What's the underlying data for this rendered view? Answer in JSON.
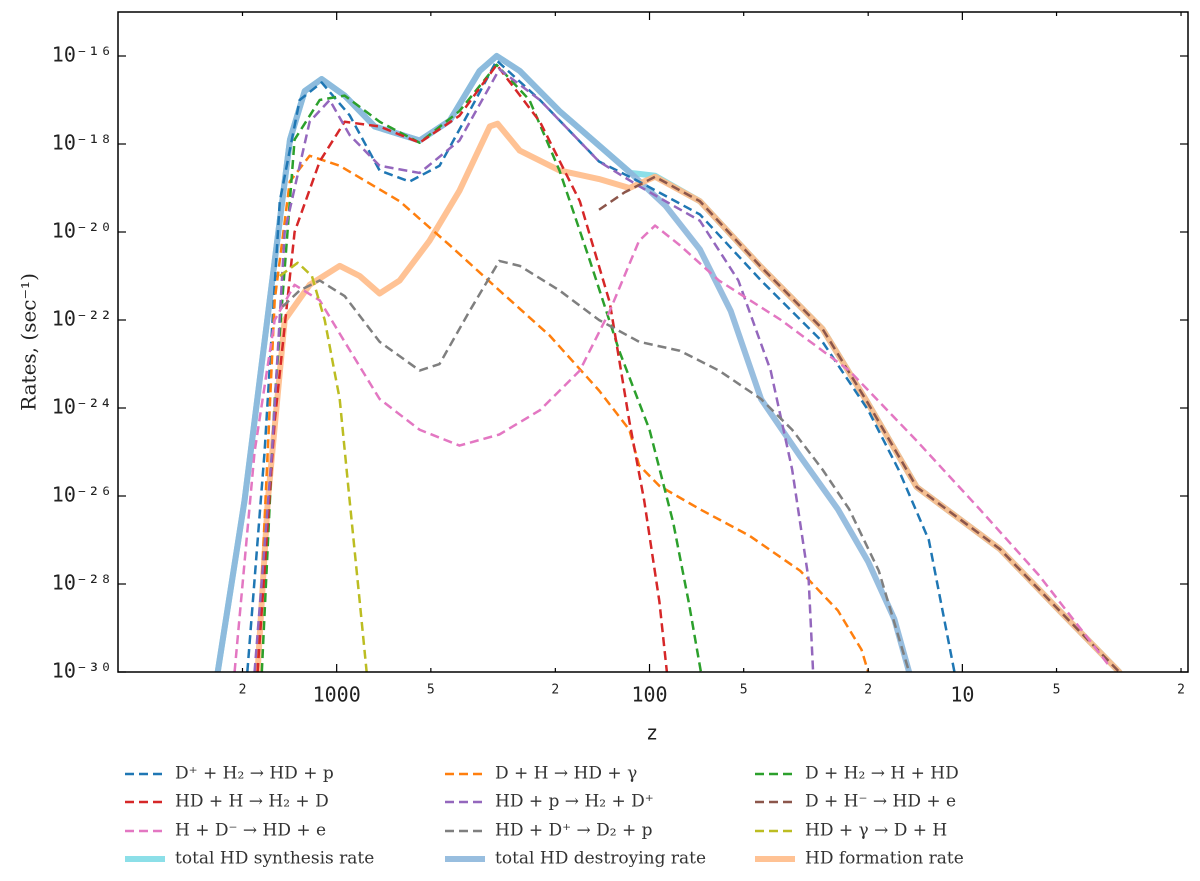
{
  "chart_data": {
    "type": "line",
    "xlabel": "z",
    "ylabel": "Rates, (sec⁻¹)",
    "xscale": "log",
    "yscale": "log",
    "xlim": [
      5000,
      1.9
    ],
    "ylim": [
      1e-30,
      1e-15
    ],
    "xticks": [
      {
        "value": 2000,
        "label": "2"
      },
      1000,
      {
        "value": 500,
        "label": "5"
      },
      {
        "value": 200,
        "label": "2"
      },
      100,
      {
        "value": 50,
        "label": "5"
      },
      {
        "value": 20,
        "label": "2"
      },
      10,
      {
        "value": 5,
        "label": "5"
      },
      {
        "value": 2,
        "label": "2"
      }
    ],
    "yticks": [
      {
        "value": 1e-30,
        "label": "10⁻³⁰"
      },
      {
        "value": 1e-28,
        "label": "10⁻²⁸"
      },
      {
        "value": 1e-26,
        "label": "10⁻²⁶"
      },
      {
        "value": 1e-24,
        "label": "10⁻²⁴"
      },
      {
        "value": 1e-22,
        "label": "10⁻²²"
      },
      {
        "value": 1e-20,
        "label": "10⁻²⁰"
      },
      {
        "value": 1e-18,
        "label": "10⁻¹⁸"
      },
      {
        "value": 1e-16,
        "label": "10⁻¹⁶"
      }
    ],
    "legend": "below",
    "series": [
      {
        "name": "D⁺ + H₂ → HD + p",
        "color": "#1f77b4",
        "style": "dashed",
        "x": [
          1930,
          1700,
          1520,
          1313,
          1117,
          909,
          729,
          585,
          469,
          376,
          308,
          224,
          145,
          108,
          69,
          44,
          28,
          20,
          16,
          12.8,
          10.6
        ],
        "values": [
          1e-30,
          1e-25,
          5e-20,
          1e-17,
          2.5e-17,
          4.5e-18,
          2.5e-19,
          1.4e-19,
          3.2e-19,
          5.6e-18,
          7.9e-17,
          1e-17,
          4e-19,
          1.4e-19,
          2.5e-20,
          7.9e-22,
          3.2e-23,
          8.9e-25,
          4e-26,
          1e-27,
          1e-30
        ]
      },
      {
        "name": "D + H → HD + γ",
        "color": "#ff7f0e",
        "style": "dashed",
        "x": [
          1790,
          1578,
          1412,
          1220,
          978,
          629,
          435,
          302,
          209,
          145,
          116,
          108,
          93,
          69,
          48,
          33,
          25,
          21,
          20
        ],
        "values": [
          1e-30,
          2.8e-22,
          1.4e-19,
          5.4e-19,
          3.2e-19,
          5e-20,
          5e-21,
          4.7e-22,
          4.5e-23,
          2.5e-24,
          3.2e-25,
          5e-26,
          1.7e-26,
          5e-27,
          1.26e-27,
          2e-28,
          2.5e-29,
          3.2e-30,
          1e-30
        ]
      },
      {
        "name": "D + H₂ → H + HD",
        "color": "#2ca02c",
        "style": "dashed",
        "x": [
          1735,
          1578,
          1363,
          1133,
          943,
          729,
          543,
          405,
          308,
          242,
          194,
          155,
          125,
          100,
          84,
          75,
          68.5
        ],
        "values": [
          1e-30,
          1.6e-24,
          1.26e-18,
          1e-17,
          1.26e-17,
          3.2e-18,
          1.07e-18,
          5.6e-18,
          6.3e-17,
          1e-17,
          2.5e-19,
          2.2e-21,
          2e-23,
          3.2e-25,
          2.5e-27,
          4e-29,
          1e-30
        ]
      },
      {
        "name": "HD + H → H₂ + D",
        "color": "#d62728",
        "style": "dashed",
        "x": [
          1790,
          1578,
          1363,
          1133,
          943,
          729,
          543,
          405,
          308,
          224,
          167,
          134,
          116,
          104,
          93,
          88
        ],
        "values": [
          1e-30,
          5e-25,
          1e-20,
          4e-19,
          3.2e-18,
          2.5e-18,
          1.07e-18,
          4.4e-18,
          6.3e-17,
          3.2e-18,
          5e-20,
          2.5e-22,
          5e-25,
          7.9e-27,
          4e-29,
          1e-30
        ]
      },
      {
        "name": "HD + p → H₂ + D⁺",
        "color": "#9467bd",
        "style": "dashed",
        "x": [
          1830,
          1610,
          1466,
          1220,
          1053,
          909,
          729,
          543,
          405,
          302,
          224,
          145,
          108,
          69,
          52,
          41,
          35,
          31,
          30
        ],
        "values": [
          1e-30,
          1e-25,
          1e-20,
          3.2e-18,
          1e-17,
          1.6e-18,
          3.2e-19,
          2.2e-19,
          1.2e-18,
          5e-17,
          1e-17,
          4e-19,
          1.1e-19,
          1.8e-20,
          7.9e-22,
          7.1e-24,
          4e-26,
          1.26e-28,
          1e-30
        ]
      },
      {
        "name": "D + H⁻ → HD + e",
        "color": "#8c564b",
        "style": "dashed",
        "x": [
          145,
          120,
          96,
          69,
          44,
          28,
          20,
          14,
          7.6,
          4.9,
          3.15
        ],
        "values": [
          3.2e-20,
          8e-20,
          1.8e-19,
          5e-20,
          1.6e-21,
          6.3e-23,
          1.26e-24,
          1.6e-26,
          6.3e-28,
          2.5e-29,
          1e-30
        ]
      },
      {
        "name": "H + D⁻ → HD + e",
        "color": "#e377c2",
        "style": "dashed",
        "x": [
          2120,
          1830,
          1578,
          1363,
          1133,
          943,
          729,
          543,
          405,
          302,
          224,
          167,
          134,
          108,
          96,
          80,
          60,
          38,
          23,
          14,
          8.8,
          5.7,
          3.9,
          3.4
        ],
        "values": [
          1e-30,
          1e-25,
          1e-22,
          6.3e-22,
          2.8e-22,
          3.2e-23,
          1.6e-24,
          3.2e-25,
          1.4e-25,
          2.5e-25,
          8.9e-25,
          7.1e-24,
          1.6e-22,
          6.3e-21,
          1.4e-20,
          5e-21,
          7.9e-22,
          1e-22,
          7.1e-24,
          1.8e-25,
          5e-27,
          1.6e-28,
          5e-30,
          1.4e-30
        ]
      },
      {
        "name": "HD + D⁺ → D₂ + p",
        "color": "#7f7f7f",
        "style": "dashed",
        "x": [
          1490,
          1313,
          1133,
          943,
          729,
          543,
          469,
          376,
          302,
          260,
          194,
          145,
          108,
          80,
          60,
          44,
          35,
          28,
          23,
          18.5,
          14.8
        ],
        "values": [
          2e-22,
          4.7e-22,
          7.9e-22,
          3.5e-22,
          3.2e-23,
          7.1e-24,
          1e-23,
          1.6e-22,
          2.2e-21,
          1.7e-21,
          4.7e-22,
          1e-22,
          3.2e-23,
          2e-23,
          7.1e-24,
          1.6e-24,
          3.2e-25,
          4e-26,
          5e-27,
          2e-28,
          1e-30
        ]
      },
      {
        "name": "HD + γ → D + H",
        "color": "#bcbd22",
        "style": "dashed",
        "x": [
          1520,
          1332,
          1200,
          1092,
          978,
          909,
          844,
          802
        ],
        "values": [
          1e-21,
          2e-21,
          1e-21,
          1e-22,
          1.6e-24,
          7.9e-27,
          4e-29,
          1e-30
        ]
      },
      {
        "name": "total HD synthesis rate",
        "color": "#80dbe6",
        "style": "solid",
        "x": [
          2400,
          1970,
          1640,
          1410,
          1265,
          1117,
          943,
          756,
          543,
          435,
          349,
          308,
          260,
          194,
          115,
          96,
          69,
          44,
          28,
          20,
          14,
          7.6,
          4.9,
          3.15
        ],
        "values": [
          1e-30,
          7.9e-27,
          2.5e-22,
          1.26e-18,
          1.6e-17,
          3e-17,
          1.26e-17,
          2.5e-18,
          1.2e-18,
          3.4e-18,
          4.6e-17,
          1e-16,
          4.6e-17,
          5.6e-18,
          2.2e-19,
          1.9e-19,
          5e-20,
          1.6e-21,
          6.3e-23,
          1.26e-24,
          1.6e-26,
          6.3e-28,
          2.5e-29,
          1e-30
        ]
      },
      {
        "name": "total HD destroying rate",
        "color": "#8db7dc",
        "style": "solid",
        "x": [
          2400,
          1970,
          1640,
          1410,
          1265,
          1117,
          943,
          756,
          543,
          435,
          349,
          308,
          260,
          194,
          115,
          89,
          69,
          55,
          44,
          33,
          25,
          20,
          16.5,
          14.8
        ],
        "values": [
          1e-30,
          7.9e-27,
          2.5e-22,
          1.26e-18,
          1.6e-17,
          3e-17,
          1.26e-17,
          2.5e-18,
          1.2e-18,
          3.4e-18,
          4.6e-17,
          1e-16,
          4.6e-17,
          5.6e-18,
          2.2e-19,
          4e-20,
          4e-21,
          1.6e-22,
          1.6e-24,
          8e-26,
          5e-27,
          3.2e-28,
          1.6e-29,
          1e-30
        ]
      },
      {
        "name": "HD formation rate",
        "color": "#ffbb88",
        "style": "solid",
        "x": [
          1790,
          1660,
          1466,
          1220,
          978,
          844,
          729,
          629,
          505,
          405,
          324,
          306,
          260,
          194,
          145,
          116,
          96,
          69,
          44,
          28,
          20,
          14,
          7.6,
          4.9,
          3.15
        ],
        "values": [
          1e-30,
          7.9e-27,
          1e-22,
          6.3e-22,
          1.7e-21,
          1e-21,
          4e-22,
          7.9e-22,
          6.3e-21,
          8.7e-20,
          2.5e-18,
          2.9e-18,
          7.1e-19,
          2.5e-19,
          1.6e-19,
          1e-19,
          1.8e-19,
          5e-20,
          1.6e-21,
          6.3e-23,
          1.26e-24,
          1.6e-26,
          6.3e-28,
          2.5e-29,
          1e-30
        ]
      }
    ]
  }
}
